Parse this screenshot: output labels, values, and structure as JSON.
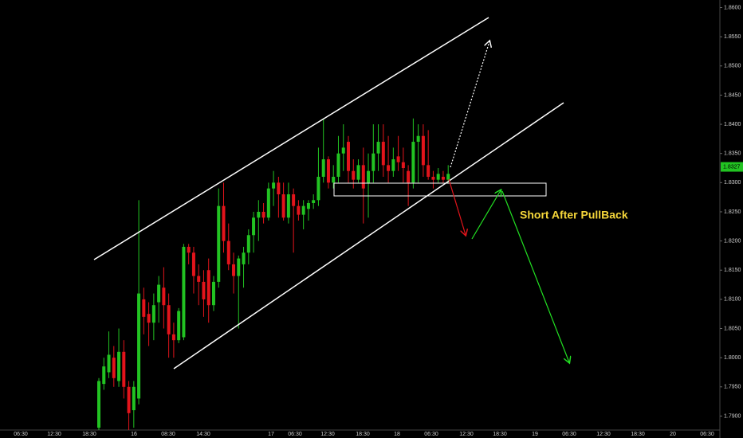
{
  "chart_data": {
    "type": "candlestick",
    "annotation": "Short After PullBack",
    "up_color": "#22c322",
    "down_color": "#e3141b",
    "annotation_color": "#f5d63a",
    "open": [
      1.788,
      1.7955,
      1.7975,
      1.8,
      1.796,
      1.801,
      1.795,
      1.791,
      1.793,
      1.81,
      1.8075,
      1.806,
      1.8095,
      1.812,
      1.809,
      1.804,
      1.803,
      1.8035,
      1.819,
      1.818,
      1.814,
      1.813,
      1.815,
      1.809,
      1.813,
      1.826,
      1.82,
      1.816,
      1.814,
      1.816,
      1.818,
      1.821,
      1.824,
      1.825,
      1.824,
      1.829,
      1.83,
      1.828,
      1.824,
      1.828,
      1.826,
      1.8245,
      1.8255,
      1.8265,
      1.827,
      1.831,
      1.834,
      1.83,
      1.831,
      1.835,
      1.837,
      1.832,
      1.8305,
      1.833,
      1.83,
      1.832,
      1.835,
      1.837,
      1.833,
      1.832,
      1.8345,
      1.8335,
      1.832,
      1.83,
      1.837,
      1.838,
      1.833,
      1.831,
      1.8305,
      1.831,
      1.8305
    ],
    "high": [
      1.7965,
      1.8,
      1.8045,
      1.802,
      1.805,
      1.803,
      1.796,
      1.796,
      1.827,
      1.812,
      1.8095,
      1.811,
      1.814,
      1.8155,
      1.811,
      1.806,
      1.8085,
      1.8195,
      1.8195,
      1.819,
      1.816,
      1.815,
      1.817,
      1.814,
      1.829,
      1.83,
      1.823,
      1.818,
      1.8175,
      1.819,
      1.822,
      1.825,
      1.827,
      1.8265,
      1.83,
      1.832,
      1.831,
      1.83,
      1.83,
      1.829,
      1.827,
      1.827,
      1.827,
      1.828,
      1.836,
      1.841,
      1.8345,
      1.833,
      1.838,
      1.84,
      1.838,
      1.834,
      1.834,
      1.836,
      1.835,
      1.84,
      1.84,
      1.84,
      1.838,
      1.836,
      1.838,
      1.836,
      1.833,
      1.841,
      1.84,
      1.84,
      1.839,
      1.832,
      1.8325,
      1.832,
      1.833
    ],
    "low": [
      1.7876,
      1.7945,
      1.7965,
      1.795,
      1.795,
      1.793,
      1.7876,
      1.788,
      1.792,
      1.804,
      1.802,
      1.803,
      1.806,
      1.805,
      1.8,
      1.8,
      1.8025,
      1.803,
      1.816,
      1.811,
      1.809,
      1.807,
      1.806,
      1.808,
      1.812,
      1.818,
      1.815,
      1.811,
      1.805,
      1.812,
      1.816,
      1.818,
      1.82,
      1.823,
      1.8235,
      1.826,
      1.824,
      1.8235,
      1.823,
      1.818,
      1.8235,
      1.822,
      1.8235,
      1.8255,
      1.826,
      1.83,
      1.829,
      1.829,
      1.83,
      1.832,
      1.83,
      1.829,
      1.83,
      1.823,
      1.824,
      1.83,
      1.832,
      1.831,
      1.83,
      1.831,
      1.832,
      1.83,
      1.826,
      1.829,
      1.83,
      1.831,
      1.8305,
      1.829,
      1.83,
      1.83,
      1.83
    ],
    "close": [
      1.796,
      1.7985,
      1.8005,
      1.7965,
      1.801,
      1.795,
      1.7905,
      1.795,
      1.811,
      1.807,
      1.806,
      1.809,
      1.8125,
      1.809,
      1.804,
      1.803,
      1.808,
      1.819,
      1.818,
      1.814,
      1.813,
      1.81,
      1.809,
      1.813,
      1.826,
      1.82,
      1.816,
      1.814,
      1.817,
      1.818,
      1.821,
      1.824,
      1.825,
      1.824,
      1.829,
      1.83,
      1.828,
      1.824,
      1.828,
      1.826,
      1.8245,
      1.826,
      1.8265,
      1.827,
      1.831,
      1.834,
      1.83,
      1.831,
      1.835,
      1.836,
      1.832,
      1.8305,
      1.833,
      1.829,
      1.832,
      1.835,
      1.837,
      1.833,
      1.832,
      1.834,
      1.8335,
      1.8325,
      1.83,
      1.837,
      1.838,
      1.833,
      1.831,
      1.8305,
      1.8315,
      1.8305,
      1.8315
    ],
    "last_price": {
      "value": 1.8327,
      "label": "1.8327"
    },
    "ylim": [
      1.7876,
      1.8613
    ],
    "yticks": [
      {
        "value": 1.79,
        "label": "1.7900"
      },
      {
        "value": 1.795,
        "label": "1.7950"
      },
      {
        "value": 1.8,
        "label": "1.8000"
      },
      {
        "value": 1.805,
        "label": "1.8050"
      },
      {
        "value": 1.81,
        "label": "1.8100"
      },
      {
        "value": 1.815,
        "label": "1.8150"
      },
      {
        "value": 1.82,
        "label": "1.8200"
      },
      {
        "value": 1.825,
        "label": "1.8250"
      },
      {
        "value": 1.83,
        "label": "1.8300"
      },
      {
        "value": 1.835,
        "label": "1.8350"
      },
      {
        "value": 1.84,
        "label": "1.8400"
      },
      {
        "value": 1.845,
        "label": "1.8450"
      },
      {
        "value": 1.85,
        "label": "1.8500"
      },
      {
        "value": 1.855,
        "label": "1.8550"
      },
      {
        "value": 1.86,
        "label": "1.8600"
      }
    ],
    "xticks": [
      "06:30",
      "12:30",
      "18:30",
      "16",
      "08:30",
      "14:30",
      "17",
      "06:30",
      "12:30",
      "18:30",
      "18",
      "06:30",
      "12:30",
      "18:30",
      "19",
      "06:30",
      "12:30",
      "18:30",
      "20",
      "06:30"
    ]
  }
}
